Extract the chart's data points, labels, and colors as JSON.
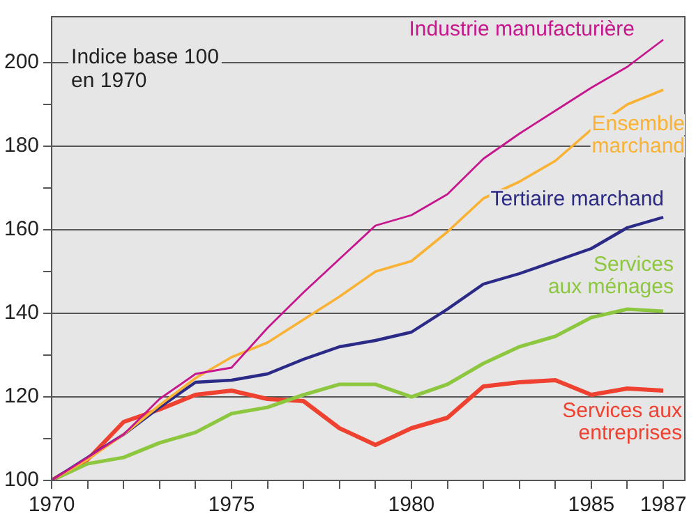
{
  "chart_data": {
    "type": "line",
    "title": "Indice base 100 en 1970",
    "x": [
      1970,
      1971,
      1972,
      1973,
      1974,
      1975,
      1976,
      1977,
      1978,
      1979,
      1980,
      1981,
      1982,
      1983,
      1984,
      1985,
      1986,
      1987
    ],
    "series": [
      {
        "name": "Industrie manufacturière",
        "color": "#c6168d",
        "values": [
          100,
          105.5,
          111,
          119.5,
          125.5,
          127,
          136.5,
          145,
          153,
          161,
          163.5,
          168.5,
          177,
          183,
          188.5,
          194,
          199,
          205.5
        ]
      },
      {
        "name": "Ensemble marchand",
        "color": "#f9b233",
        "values": [
          100,
          105,
          111,
          118,
          124.5,
          129.5,
          133,
          138.5,
          144,
          150,
          152.5,
          159.5,
          167.5,
          171.5,
          176.5,
          184,
          190,
          193.5
        ]
      },
      {
        "name": "Tertiaire marchand",
        "color": "#2b2a87",
        "values": [
          100,
          105.5,
          111,
          117.5,
          123.5,
          124,
          125.5,
          129,
          132,
          133.5,
          135.5,
          141,
          147,
          149.5,
          152.5,
          155.5,
          160.5,
          163
        ]
      },
      {
        "name": "Services aux ménages",
        "color": "#8dc63f",
        "values": [
          100,
          104,
          105.5,
          109,
          111.5,
          116,
          117.5,
          120.5,
          123,
          123,
          120,
          123,
          128,
          132,
          134.5,
          139,
          141,
          140.5
        ]
      },
      {
        "name": "Services aux entreprises",
        "color": "#ef4130",
        "values": [
          100,
          105,
          114,
          117,
          120.5,
          121.5,
          119.5,
          119,
          112.5,
          108.5,
          112.5,
          115,
          122.5,
          123.5,
          124,
          120.5,
          122,
          121.5
        ]
      }
    ],
    "xlim": [
      1970,
      1987.6
    ],
    "xticks": [
      1970,
      {
        "value": 1971,
        "label": null
      },
      {
        "value": 1972,
        "label": null
      },
      {
        "value": 1973,
        "label": null
      },
      {
        "value": 1974,
        "label": null
      },
      1975,
      {
        "value": 1976,
        "label": null
      },
      {
        "value": 1977,
        "label": null
      },
      {
        "value": 1978,
        "label": null
      },
      {
        "value": 1979,
        "label": null
      },
      1980,
      {
        "value": 1981,
        "label": null
      },
      {
        "value": 1982,
        "label": null
      },
      {
        "value": 1983,
        "label": null
      },
      {
        "value": 1984,
        "label": null
      },
      1985,
      {
        "value": 1986,
        "label": null
      },
      1987
    ],
    "ylim": [
      100,
      211
    ],
    "yticks": [
      100,
      {
        "value": 110,
        "label": null
      },
      120,
      {
        "value": 130,
        "label": null
      },
      140,
      {
        "value": 150,
        "label": null
      },
      160,
      {
        "value": 170,
        "label": null
      },
      180,
      {
        "value": 190,
        "label": null
      },
      200
    ],
    "grid": "y",
    "legend": false,
    "marker": "none",
    "line_style": "solid"
  }
}
